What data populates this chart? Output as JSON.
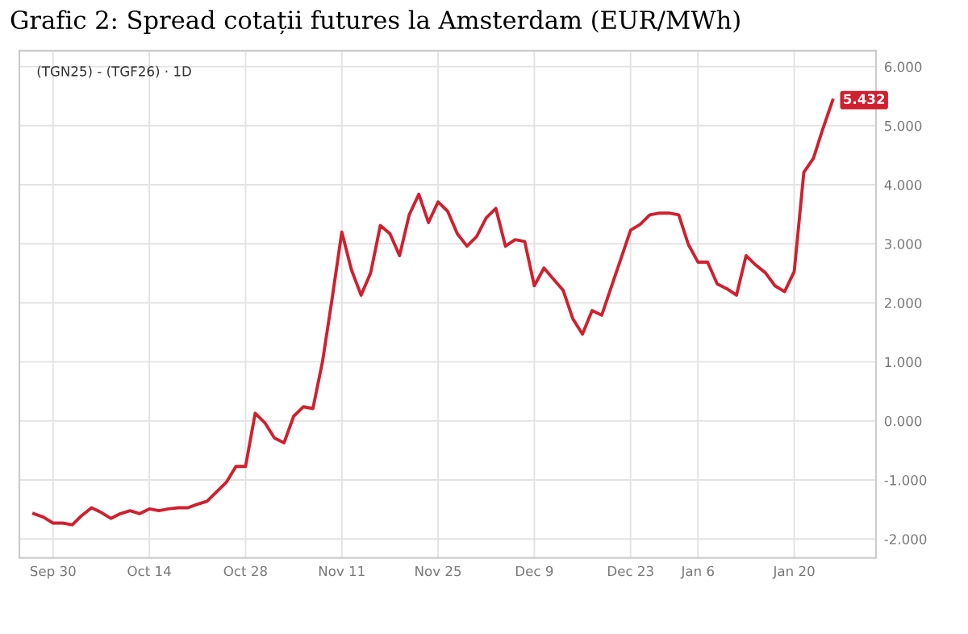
{
  "chart_data": {
    "type": "line",
    "title": "Grafic 2: Spread cotații futures la Amsterdam (EUR/MWh)",
    "annotations": [
      "(TGN25) - (TGF26) · 1D"
    ],
    "categories": [
      null,
      null,
      "Sep 30",
      null,
      null,
      null,
      null,
      null,
      null,
      null,
      null,
      null,
      "Oct 14",
      null,
      null,
      null,
      null,
      null,
      null,
      null,
      null,
      null,
      "Oct 28",
      null,
      null,
      null,
      null,
      null,
      null,
      null,
      null,
      null,
      "Nov 11",
      null,
      null,
      null,
      null,
      null,
      null,
      null,
      null,
      null,
      "Nov 25",
      null,
      null,
      null,
      null,
      null,
      null,
      null,
      null,
      null,
      "Dec 9",
      null,
      null,
      null,
      null,
      null,
      null,
      null,
      null,
      null,
      "Dec 23",
      null,
      null,
      null,
      null,
      null,
      null,
      "Jan 6",
      null,
      null,
      null,
      null,
      null,
      null,
      null,
      null,
      null,
      "Jan 20",
      null,
      null,
      null,
      null
    ],
    "series": [
      {
        "color": "#d0202f",
        "values": [
          -1.57,
          -1.63,
          -1.73,
          -1.73,
          -1.76,
          -1.6,
          -1.47,
          -1.55,
          -1.65,
          -1.57,
          -1.52,
          -1.57,
          -1.49,
          -1.52,
          -1.49,
          -1.47,
          -1.47,
          -1.41,
          -1.36,
          -1.2,
          -1.04,
          -0.77,
          -0.77,
          0.13,
          -0.03,
          -0.29,
          -0.37,
          0.08,
          0.24,
          0.21,
          1.01,
          2.08,
          3.2,
          2.56,
          2.13,
          2.51,
          3.31,
          3.17,
          2.8,
          3.49,
          3.84,
          3.36,
          3.71,
          3.55,
          3.17,
          2.96,
          3.12,
          3.44,
          3.6,
          2.96,
          3.07,
          3.04,
          2.29,
          2.59,
          2.4,
          2.21,
          1.73,
          1.47,
          1.87,
          1.79,
          2.27,
          2.75,
          3.23,
          3.33,
          3.49,
          3.52,
          3.52,
          3.49,
          2.99,
          2.69,
          2.69,
          2.32,
          2.24,
          2.13,
          2.8,
          2.64,
          2.51,
          2.29,
          2.19,
          2.53,
          4.21,
          4.45,
          4.96,
          5.432
        ],
        "value_labels": [
          null,
          null,
          null,
          null,
          null,
          null,
          null,
          null,
          null,
          null,
          null,
          null,
          null,
          null,
          null,
          null,
          null,
          null,
          null,
          null,
          null,
          null,
          null,
          null,
          null,
          null,
          null,
          null,
          null,
          null,
          null,
          null,
          null,
          null,
          null,
          null,
          null,
          null,
          null,
          null,
          null,
          null,
          null,
          null,
          null,
          null,
          null,
          null,
          null,
          null,
          null,
          null,
          null,
          null,
          null,
          null,
          null,
          null,
          null,
          null,
          null,
          null,
          null,
          null,
          null,
          null,
          null,
          null,
          null,
          null,
          null,
          null,
          null,
          null,
          null,
          null,
          null,
          null,
          null,
          null,
          null,
          null,
          null,
          "5.432"
        ]
      }
    ],
    "ylim": [
      -2.32,
      6.27
    ],
    "yticks": [
      {
        "value": -2,
        "label": "-2.000"
      },
      {
        "value": -1,
        "label": "-1.000"
      },
      {
        "value": 0,
        "label": "0.000"
      },
      {
        "value": 1,
        "label": "1.000"
      },
      {
        "value": 2,
        "label": "2.000"
      },
      {
        "value": 3,
        "label": "3.000"
      },
      {
        "value": 4,
        "label": "4.000"
      },
      {
        "value": 5,
        "label": "5.000"
      },
      {
        "value": 6,
        "label": "6.000"
      }
    ],
    "grid": true,
    "marker": "none",
    "line_style": "solid",
    "legend": false
  }
}
